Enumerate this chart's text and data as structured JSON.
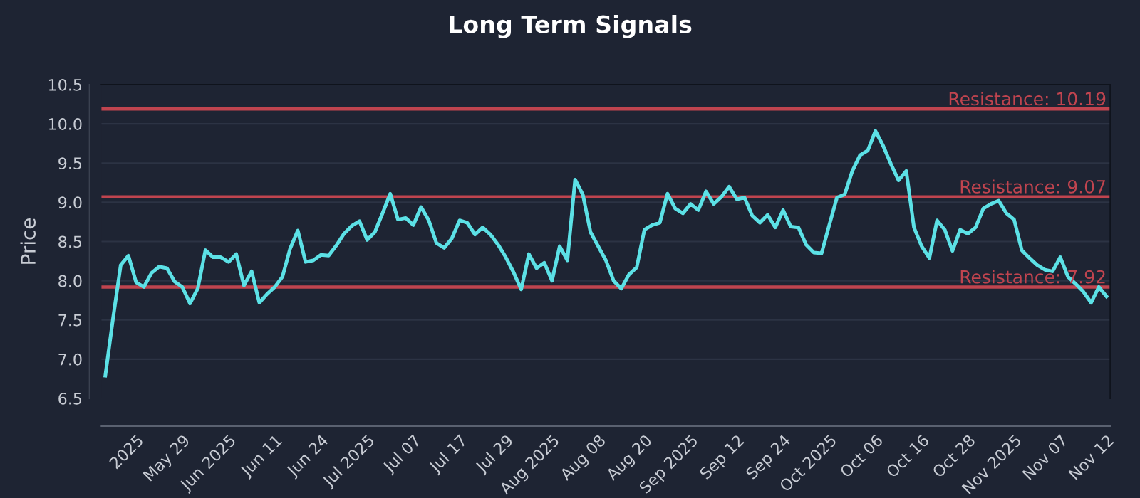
{
  "chart_data": {
    "type": "line",
    "title": "Long Term Signals",
    "ylabel": "Price",
    "categories": [
      null,
      null,
      null,
      null,
      "2025",
      null,
      null,
      null,
      null,
      null,
      "May 29",
      null,
      null,
      null,
      null,
      null,
      "Jun 2025",
      null,
      null,
      null,
      null,
      null,
      "Jun 11",
      null,
      null,
      null,
      null,
      null,
      "Jun 24",
      null,
      null,
      null,
      null,
      null,
      "Jul 2025",
      null,
      null,
      null,
      null,
      null,
      "Jul 07",
      null,
      null,
      null,
      null,
      null,
      "Jul 17",
      null,
      null,
      null,
      null,
      null,
      "Jul 29",
      null,
      null,
      null,
      null,
      null,
      "Aug 2025",
      null,
      null,
      null,
      null,
      null,
      "Aug 08",
      null,
      null,
      null,
      null,
      null,
      "Aug 20",
      null,
      null,
      null,
      null,
      null,
      "Sep 2025",
      null,
      null,
      null,
      null,
      null,
      "Sep 12",
      null,
      null,
      null,
      null,
      null,
      "Sep 24",
      null,
      null,
      null,
      null,
      null,
      "Oct 2025",
      null,
      null,
      null,
      null,
      null,
      "Oct 06",
      null,
      null,
      null,
      null,
      null,
      "Oct 16",
      null,
      null,
      null,
      null,
      null,
      "Oct 28",
      null,
      null,
      null,
      null,
      null,
      "Nov 2025",
      null,
      null,
      null,
      null,
      null,
      "Nov 07",
      null,
      null,
      null,
      null,
      null,
      "Nov 12"
    ],
    "series": [
      {
        "color": "#5ce1e6",
        "values": [
          6.79,
          7.52,
          8.2,
          8.32,
          7.98,
          7.92,
          8.1,
          8.18,
          8.16,
          7.99,
          7.92,
          7.71,
          7.9,
          8.39,
          8.3,
          8.3,
          8.24,
          8.34,
          7.94,
          8.12,
          7.72,
          7.83,
          7.92,
          8.05,
          8.41,
          8.64,
          8.24,
          8.26,
          8.33,
          8.32,
          8.45,
          8.6,
          8.7,
          8.76,
          8.52,
          8.62,
          8.86,
          9.11,
          8.78,
          8.8,
          8.71,
          8.94,
          8.77,
          8.48,
          8.42,
          8.54,
          8.77,
          8.74,
          8.59,
          8.68,
          8.59,
          8.46,
          8.3,
          8.11,
          7.89,
          8.34,
          8.16,
          8.23,
          8.0,
          8.44,
          8.26,
          9.29,
          9.1,
          8.62,
          8.44,
          8.26,
          8.0,
          7.9,
          8.08,
          8.17,
          8.65,
          8.71,
          8.74,
          9.11,
          8.92,
          8.86,
          8.98,
          8.9,
          9.14,
          8.98,
          9.07,
          9.2,
          9.04,
          9.06,
          8.83,
          8.74,
          8.84,
          8.68,
          8.9,
          8.69,
          8.68,
          8.46,
          8.36,
          8.35,
          8.71,
          9.06,
          9.1,
          9.4,
          9.6,
          9.66,
          9.91,
          9.72,
          9.49,
          9.28,
          9.4,
          8.68,
          8.44,
          8.29,
          8.77,
          8.65,
          8.38,
          8.65,
          8.6,
          8.68,
          8.92,
          8.98,
          9.02,
          8.86,
          8.78,
          8.39,
          8.29,
          8.2,
          8.14,
          8.12,
          8.3,
          8.05,
          7.96,
          7.86,
          7.72,
          7.92,
          7.8
        ]
      }
    ],
    "ylim": [
      6.5,
      10.5
    ],
    "yticks": [
      6.5,
      {
        "value": 7,
        "label": "7.0"
      },
      7.5,
      {
        "value": 8,
        "label": "8.0"
      },
      8.5,
      {
        "value": 9,
        "label": "9.0"
      },
      9.5,
      {
        "value": 10,
        "label": "10.0"
      },
      10.5
    ],
    "grid": "y",
    "line_style": "solid",
    "marker": "none",
    "ref_lines": [
      {
        "axis": "y",
        "value": 10.19,
        "label": "Resistance: 10.19",
        "color": "#c0444f"
      },
      {
        "axis": "y",
        "value": 9.07,
        "label": "Resistance: 9.07",
        "color": "#c0444f"
      },
      {
        "axis": "y",
        "value": 7.92,
        "label": "Resistance: 7.92",
        "color": "#c0444f"
      }
    ]
  }
}
